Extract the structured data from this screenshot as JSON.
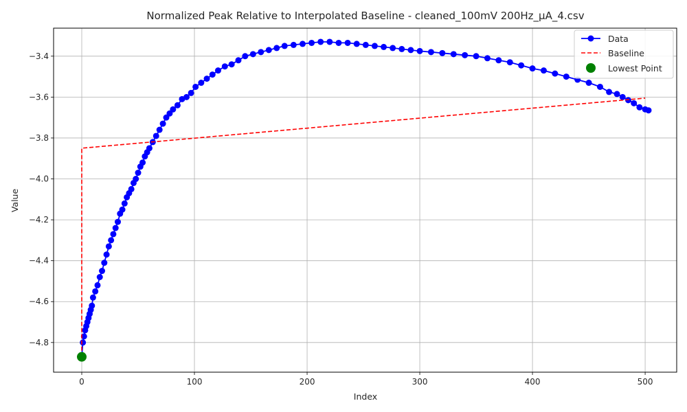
{
  "chart_data": {
    "type": "line",
    "title": "Normalized Peak Relative to Interpolated Baseline - cleaned_100mV 200Hz_μA_4.csv",
    "xlabel": "Index",
    "ylabel": "Value",
    "xlim": [
      -25,
      528
    ],
    "ylim": [
      -4.945,
      -3.263
    ],
    "grid": true,
    "legend_position": "top-right",
    "x_ticks": [
      0,
      100,
      200,
      300,
      400,
      500
    ],
    "x_tick_labels": [
      "0",
      "100",
      "200",
      "300",
      "400",
      "500"
    ],
    "y_ticks": [
      -4.8,
      -4.6,
      -4.4,
      -4.2,
      -4.0,
      -3.8,
      -3.6,
      -3.4
    ],
    "y_tick_labels": [
      "−4.8",
      "−4.6",
      "−4.4",
      "−4.2",
      "−4.0",
      "−3.8",
      "−3.6",
      "−3.4"
    ],
    "colors": {
      "data": "#0000ff",
      "baseline": "#ff0000",
      "lowest": "#008000",
      "grid": "#b0b0b0"
    },
    "series": [
      {
        "name": "Data",
        "style": "solid-line-with-circle-markers",
        "x": [
          0,
          1,
          2,
          3,
          4,
          5,
          6,
          7,
          8,
          9,
          10,
          12,
          14,
          16,
          18,
          20,
          22,
          24,
          26,
          28,
          30,
          32,
          34,
          36,
          38,
          40,
          42,
          44,
          46,
          48,
          50,
          52,
          54,
          56,
          58,
          60,
          63,
          66,
          69,
          72,
          75,
          78,
          81,
          85,
          89,
          93,
          97,
          101,
          106,
          111,
          116,
          121,
          127,
          133,
          139,
          145,
          152,
          159,
          166,
          173,
          180,
          188,
          196,
          204,
          212,
          220,
          228,
          236,
          244,
          252,
          260,
          268,
          276,
          284,
          292,
          300,
          310,
          320,
          330,
          340,
          350,
          360,
          370,
          380,
          390,
          400,
          410,
          420,
          430,
          440,
          450,
          460,
          468,
          475,
          480,
          485,
          490,
          495,
          500,
          503
        ],
        "y": [
          -4.87,
          -4.8,
          -4.77,
          -4.74,
          -4.72,
          -4.7,
          -4.68,
          -4.66,
          -4.64,
          -4.62,
          -4.58,
          -4.55,
          -4.52,
          -4.48,
          -4.45,
          -4.41,
          -4.37,
          -4.33,
          -4.3,
          -4.27,
          -4.24,
          -4.21,
          -4.17,
          -4.15,
          -4.12,
          -4.09,
          -4.07,
          -4.05,
          -4.02,
          -4.0,
          -3.97,
          -3.94,
          -3.92,
          -3.89,
          -3.87,
          -3.85,
          -3.82,
          -3.79,
          -3.76,
          -3.73,
          -3.7,
          -3.68,
          -3.66,
          -3.64,
          -3.61,
          -3.6,
          -3.58,
          -3.55,
          -3.53,
          -3.51,
          -3.49,
          -3.47,
          -3.45,
          -3.44,
          -3.42,
          -3.4,
          -3.39,
          -3.38,
          -3.37,
          -3.36,
          -3.35,
          -3.345,
          -3.34,
          -3.335,
          -3.33,
          -3.33,
          -3.335,
          -3.335,
          -3.34,
          -3.345,
          -3.35,
          -3.355,
          -3.36,
          -3.365,
          -3.37,
          -3.375,
          -3.38,
          -3.385,
          -3.39,
          -3.395,
          -3.4,
          -3.41,
          -3.42,
          -3.43,
          -3.445,
          -3.46,
          -3.47,
          -3.485,
          -3.5,
          -3.515,
          -3.53,
          -3.55,
          -3.575,
          -3.585,
          -3.6,
          -3.615,
          -3.63,
          -3.65,
          -3.66,
          -3.665
        ]
      },
      {
        "name": "Baseline",
        "style": "dashed-line",
        "x": [
          0,
          0,
          500
        ],
        "y": [
          -4.87,
          -3.85,
          -3.605
        ]
      },
      {
        "name": "Lowest Point",
        "style": "scatter",
        "x": [
          0
        ],
        "y": [
          -4.87
        ]
      }
    ]
  }
}
